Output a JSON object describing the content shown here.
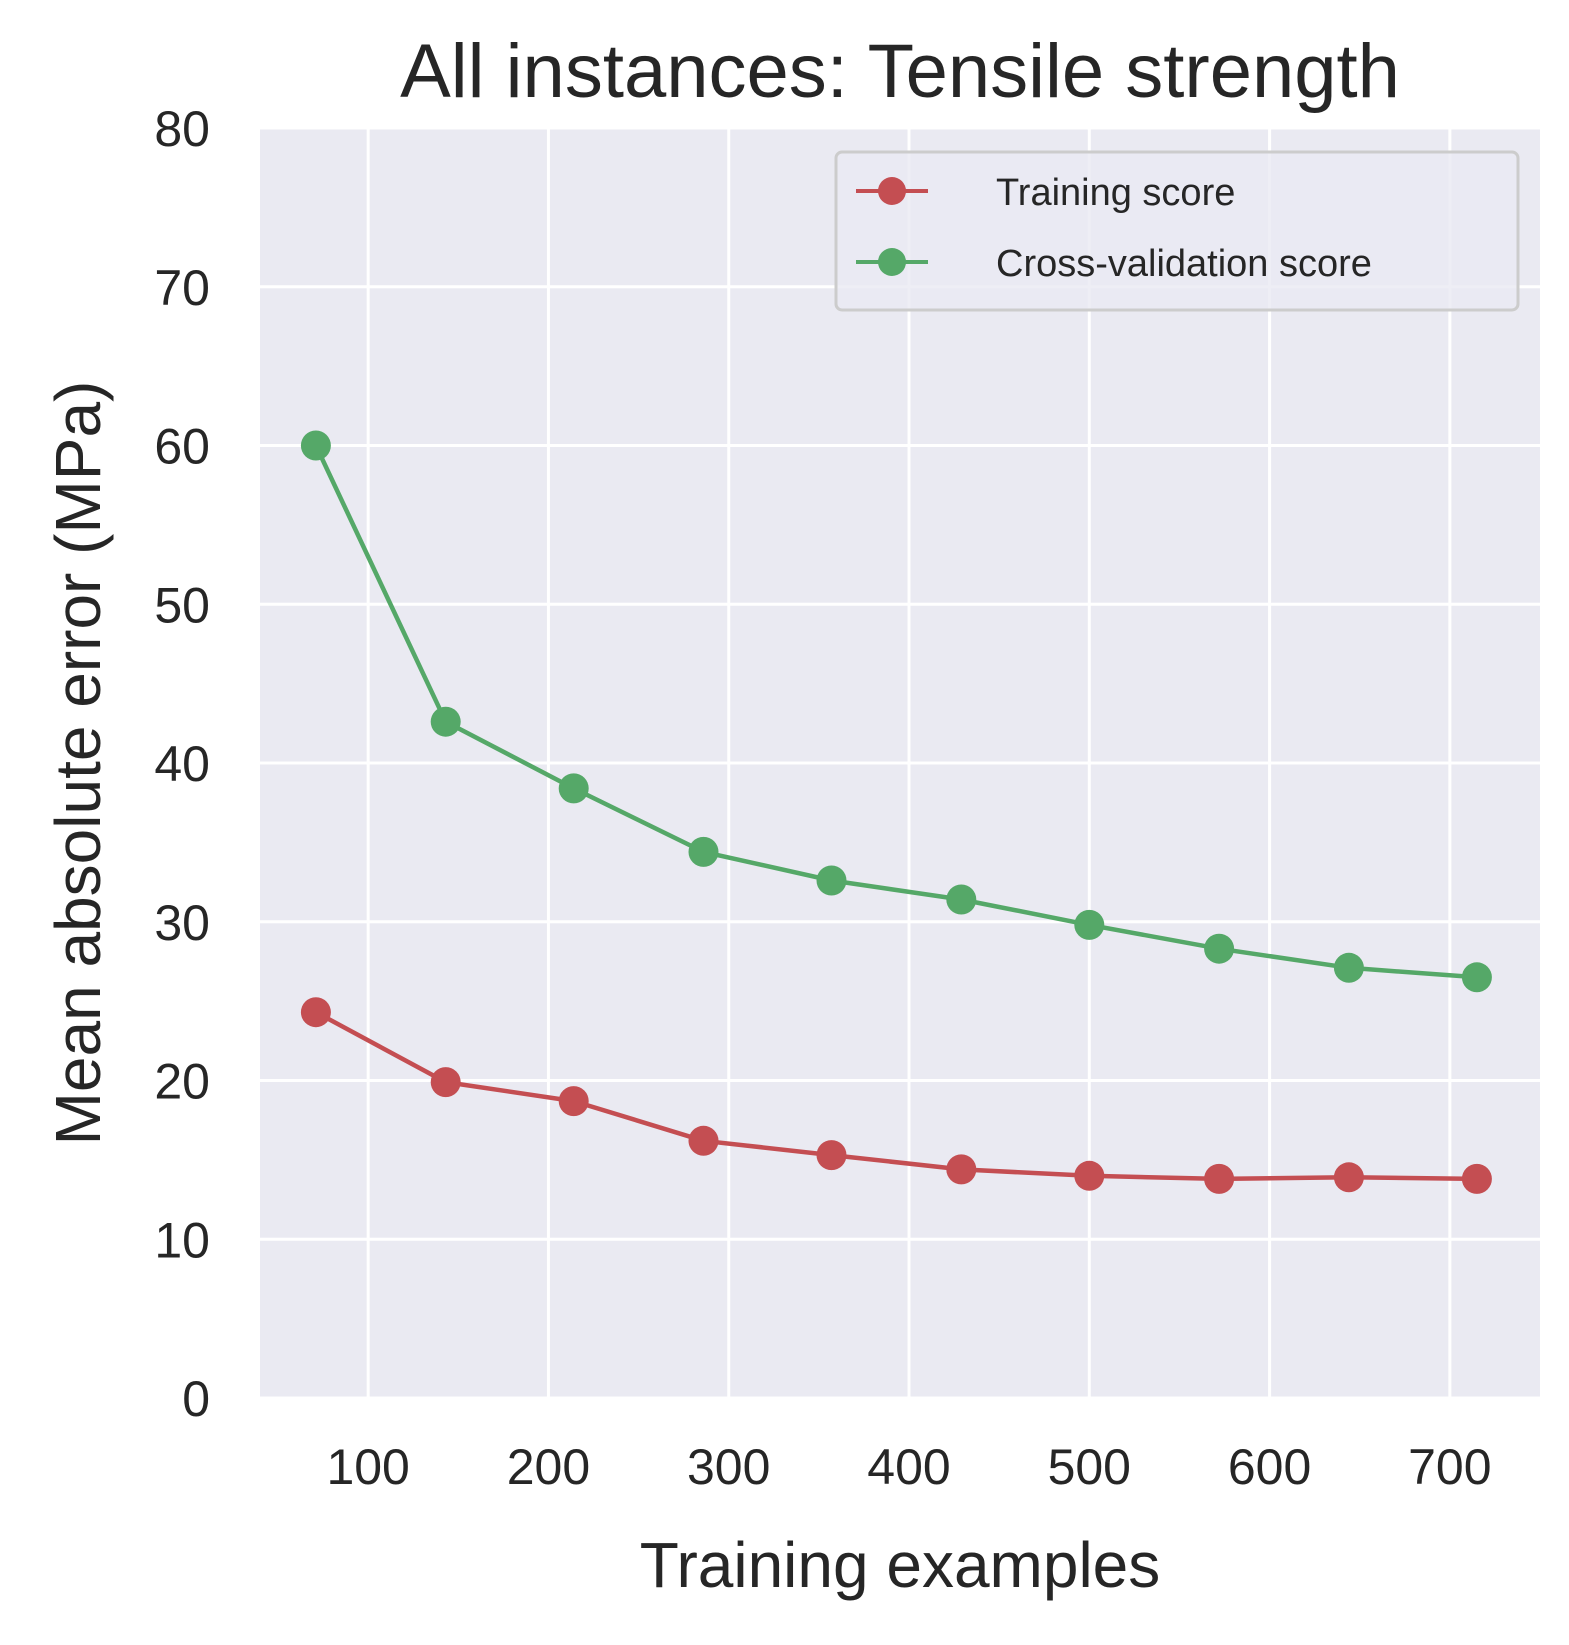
{
  "chart_data": {
    "type": "line",
    "title": "All instances: Tensile strength",
    "xlabel": "Training examples",
    "ylabel": "Mean absolute error (MPa)",
    "xlim": [
      40,
      750
    ],
    "ylim": [
      0,
      80
    ],
    "xticks": [
      100,
      200,
      300,
      400,
      500,
      600,
      700
    ],
    "yticks": [
      0,
      10,
      20,
      30,
      40,
      50,
      60,
      70,
      80
    ],
    "grid": true,
    "legend_position": "top-right",
    "x": [
      71,
      143,
      214,
      286,
      357,
      429,
      500,
      572,
      644,
      715
    ],
    "series": [
      {
        "name": "Training score",
        "color": "#c44e52",
        "values": [
          24.3,
          19.9,
          18.7,
          16.2,
          15.3,
          14.4,
          14.0,
          13.8,
          13.9,
          13.8
        ]
      },
      {
        "name": "Cross-validation score",
        "color": "#55a868",
        "values": [
          60.0,
          42.6,
          38.4,
          34.4,
          32.6,
          31.4,
          29.8,
          28.3,
          27.1,
          26.5
        ]
      }
    ],
    "style": {
      "plot_background": "#eaeaf2",
      "grid_color": "#ffffff"
    }
  }
}
